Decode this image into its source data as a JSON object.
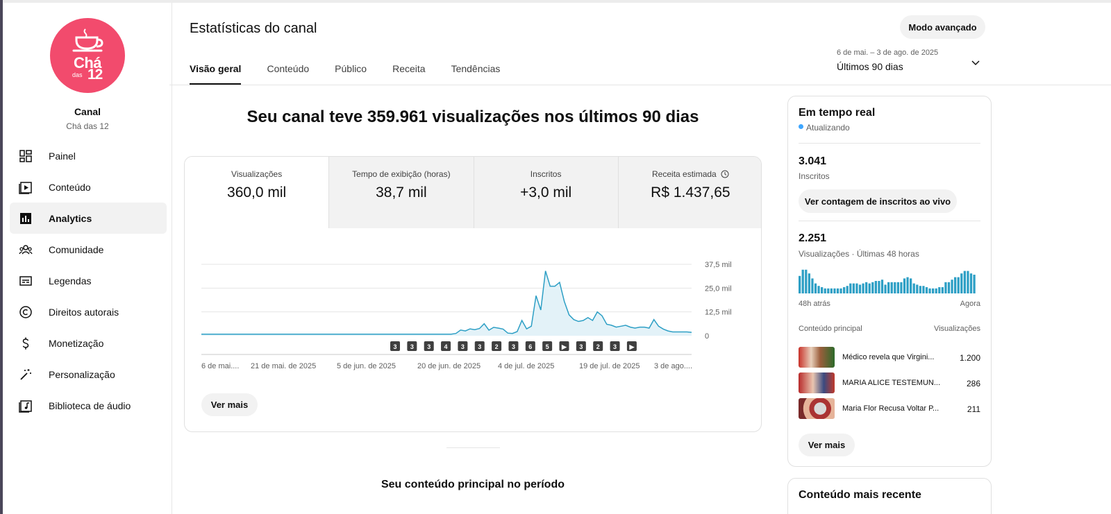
{
  "sidebar": {
    "channel_label": "Canal",
    "channel_name": "Chá das 12",
    "logo_text": {
      "cha": "Chá",
      "das": "das",
      "num": "12"
    },
    "items": [
      {
        "label": "Painel",
        "icon": "dashboard-icon"
      },
      {
        "label": "Conteúdo",
        "icon": "content-icon"
      },
      {
        "label": "Analytics",
        "icon": "analytics-icon",
        "active": true
      },
      {
        "label": "Comunidade",
        "icon": "community-icon"
      },
      {
        "label": "Legendas",
        "icon": "subtitles-icon"
      },
      {
        "label": "Direitos autorais",
        "icon": "copyright-icon"
      },
      {
        "label": "Monetização",
        "icon": "monetization-icon"
      },
      {
        "label": "Personalização",
        "icon": "customization-icon"
      },
      {
        "label": "Biblioteca de áudio",
        "icon": "audio-library-icon"
      }
    ],
    "logo_color": "#f24b6d"
  },
  "header": {
    "title": "Estatísticas do canal",
    "advanced_button": "Modo avançado",
    "tabs": [
      "Visão geral",
      "Conteúdo",
      "Público",
      "Receita",
      "Tendências"
    ],
    "date_range": "6 de mai. – 3 de ago. de 2025",
    "date_label": "Últimos 90 dias"
  },
  "headline": "Seu canal teve 359.961 visualizações nos últimos 90 dias",
  "metrics": [
    {
      "label": "Visualizações",
      "value": "360,0 mil"
    },
    {
      "label": "Tempo de exibição (horas)",
      "value": "38,7 mil"
    },
    {
      "label": "Inscritos",
      "value": "+3,0 mil"
    },
    {
      "label": "Receita estimada",
      "value": "R$ 1.437,65"
    }
  ],
  "ver_mais": "Ver mais",
  "section_title": "Seu conteúdo principal no período",
  "chart_data": {
    "type": "area",
    "series": [
      {
        "values": [
          0.8,
          0.8,
          0.8,
          0.8,
          0.8,
          0.8,
          0.8,
          0.8,
          0.8,
          0.8,
          0.8,
          0.8,
          0.8,
          0.8,
          0.8,
          0.8,
          0.8,
          0.8,
          0.8,
          0.8,
          0.8,
          0.8,
          0.8,
          0.8,
          0.8,
          0.8,
          0.8,
          0.8,
          0.8,
          0.8,
          0.8,
          0.8,
          0.8,
          0.8,
          0.8,
          0.8,
          0.8,
          0.8,
          0.8,
          0.8,
          0.8,
          0.8,
          0.8,
          0.8,
          0.8,
          0.8,
          0.8,
          0.8,
          0.8,
          0.8,
          0.8,
          0.8,
          0.8,
          0.8,
          1.2,
          3.0,
          2.5,
          3.6,
          3.2,
          3.8,
          6.3,
          2.9,
          4.4,
          4.0,
          3.5,
          1.4,
          1.2,
          2.2,
          8.0,
          3.6,
          5.0,
          21.0,
          13.5,
          34.0,
          26.0,
          26.0,
          28.0,
          18.0,
          11.0,
          8.5,
          7.5,
          8.0,
          9.5,
          8.0,
          12.5,
          10.5,
          6.0,
          5.5,
          4.5,
          5.0,
          5.5,
          4.5,
          4.0,
          4.5,
          4.5,
          4.0,
          8.5,
          5.0,
          3.5,
          2.5,
          2.0,
          2.0,
          2.0,
          2.0,
          1.8
        ]
      }
    ],
    "y_ticks": [
      "37,5 mil",
      "25,0 mil",
      "12,5 mil",
      "0"
    ],
    "ylim": [
      0,
      37.5
    ],
    "x_ticks": [
      "6 de mai....",
      "21 de mai. de 2025",
      "5 de jun. de 2025",
      "20 de jun. de 2025",
      "4 de jul. de 2025",
      "19 de jul. de 2025",
      "3 de ago...."
    ],
    "markers": [
      "3",
      "3",
      "3",
      "4",
      "3",
      "3",
      "2",
      "3",
      "6",
      "5",
      "▶",
      "3",
      "2",
      "3",
      "▶"
    ],
    "line_color": "#2d9fc5",
    "fill_color": "#e3f2f8",
    "grid": true
  },
  "realtime": {
    "title": "Em tempo real",
    "updating": "Atualizando",
    "subscribers_value": "3.041",
    "subscribers_label": "Inscritos",
    "live_button": "Ver contagem de inscritos ao vivo",
    "views_value": "2.251",
    "views_label": "Visualizações · Últimas 48 horas",
    "bars": [
      0.7,
      0.95,
      0.95,
      0.8,
      0.6,
      0.4,
      0.3,
      0.25,
      0.2,
      0.2,
      0.2,
      0.2,
      0.2,
      0.2,
      0.25,
      0.3,
      0.4,
      0.4,
      0.4,
      0.35,
      0.4,
      0.45,
      0.4,
      0.45,
      0.5,
      0.5,
      0.55,
      0.35,
      0.45,
      0.45,
      0.45,
      0.45,
      0.45,
      0.6,
      0.65,
      0.6,
      0.4,
      0.35,
      0.3,
      0.3,
      0.25,
      0.2,
      0.2,
      0.2,
      0.25,
      0.25,
      0.45,
      0.45,
      0.55,
      0.65,
      0.65,
      0.8,
      0.9,
      0.9,
      0.8,
      0.75
    ],
    "axis_left": "48h atrás",
    "axis_right": "Agora",
    "content_header": "Conteúdo principal",
    "views_header": "Visualizações",
    "rows": [
      {
        "title": "Médico revela que Virgini...",
        "value": "1.200"
      },
      {
        "title": "MARIA ALICE TESTEMUN...",
        "value": "286"
      },
      {
        "title": "Maria Flor Recusa Voltar P...",
        "value": "211"
      }
    ],
    "ver_mais": "Ver mais",
    "bar_color": "#2d9fc5"
  },
  "recent": {
    "title": "Conteúdo mais recente"
  }
}
